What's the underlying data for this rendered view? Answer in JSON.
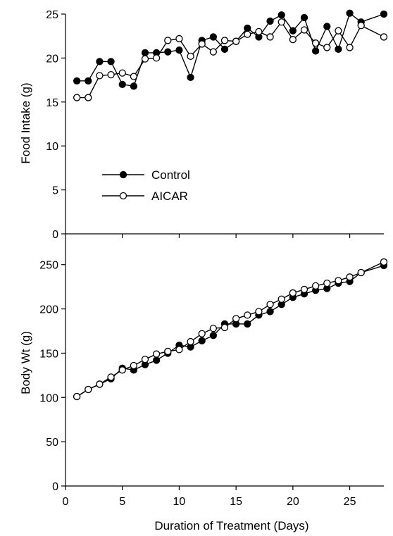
{
  "chart_data": [
    {
      "type": "line",
      "ylabel": "Food Intake (g)",
      "xlabel": "",
      "xlim": [
        0,
        28
      ],
      "ylim": [
        0,
        25
      ],
      "xticks": [
        0,
        5,
        10,
        15,
        20,
        25
      ],
      "yticks": [
        0,
        5,
        10,
        15,
        20,
        25
      ],
      "show_x_tick_labels": false,
      "grid": false,
      "legend": {
        "placement": "center-left"
      },
      "x": [
        1,
        2,
        3,
        4,
        5,
        6,
        7,
        8,
        9,
        10,
        11,
        12,
        13,
        14,
        15,
        16,
        17,
        18,
        19,
        20,
        21,
        22,
        23,
        24,
        25,
        26,
        28
      ],
      "series": [
        {
          "name": "Control",
          "marker": "filled-circle",
          "values": [
            17.4,
            17.4,
            19.6,
            19.6,
            17.0,
            16.8,
            20.6,
            20.6,
            20.7,
            20.9,
            17.8,
            22.0,
            22.4,
            21.0,
            21.9,
            23.4,
            22.4,
            24.2,
            24.9,
            23.1,
            24.6,
            20.8,
            23.6,
            21.0,
            25.1,
            24.1,
            25.0
          ]
        },
        {
          "name": "AICAR",
          "marker": "open-circle",
          "values": [
            15.5,
            15.5,
            18.0,
            18.1,
            18.3,
            17.9,
            19.9,
            20.0,
            22.0,
            22.2,
            20.2,
            21.6,
            20.7,
            22.0,
            21.9,
            22.7,
            23.0,
            22.4,
            24.1,
            22.1,
            23.2,
            21.7,
            21.2,
            23.1,
            21.2,
            23.7,
            22.4
          ]
        }
      ]
    },
    {
      "type": "line",
      "ylabel": "Body Wt (g)",
      "xlabel": "Duration of Treatment (Days)",
      "xlim": [
        0,
        28
      ],
      "ylim": [
        0,
        280
      ],
      "xticks": [
        0,
        5,
        10,
        15,
        20,
        25
      ],
      "yticks": [
        0,
        50,
        100,
        150,
        200,
        250
      ],
      "show_x_tick_labels": true,
      "grid": false,
      "x": [
        1,
        2,
        3,
        4,
        5,
        6,
        7,
        8,
        9,
        10,
        11,
        12,
        13,
        14,
        15,
        16,
        17,
        18,
        19,
        20,
        21,
        22,
        23,
        24,
        25,
        26,
        28
      ],
      "series": [
        {
          "name": "Control",
          "marker": "filled-circle",
          "values": [
            101,
            109,
            115,
            121,
            133,
            131,
            137,
            142,
            150,
            159,
            157,
            164,
            170,
            183,
            183,
            183,
            193,
            197,
            205,
            213,
            217,
            221,
            223,
            229,
            231,
            241,
            249
          ]
        },
        {
          "name": "AICAR",
          "marker": "open-circle",
          "values": [
            101,
            109,
            115,
            123,
            131,
            136,
            143,
            149,
            152,
            154,
            163,
            172,
            178,
            179,
            189,
            193,
            197,
            205,
            211,
            218,
            222,
            226,
            229,
            232,
            236,
            241,
            253
          ]
        }
      ]
    }
  ]
}
